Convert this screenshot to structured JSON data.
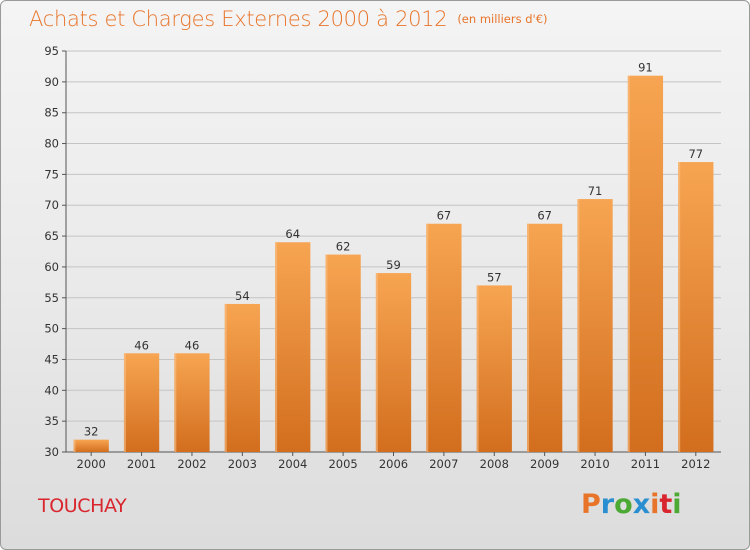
{
  "title": "Achats et Charges Externes 2000 à 2012",
  "unit": "(en milliers d'€)",
  "commune": "TOUCHAY",
  "logo": {
    "text": "Proxiti",
    "letters": [
      "P",
      "r",
      "o",
      "x",
      "i",
      "t",
      "i"
    ]
  },
  "colors": {
    "title": "#e8742a",
    "bar_light": "#f7a552",
    "bar_dark": "#d26e1e",
    "commune": "#d9262e"
  },
  "chart_data": {
    "type": "bar",
    "categories": [
      "2000",
      "2001",
      "2002",
      "2003",
      "2004",
      "2005",
      "2006",
      "2007",
      "2008",
      "2009",
      "2010",
      "2011",
      "2012"
    ],
    "values": [
      32,
      46,
      46,
      54,
      64,
      62,
      59,
      67,
      57,
      67,
      71,
      91,
      77
    ],
    "ylim": [
      30,
      95
    ],
    "yticks": [
      30,
      35,
      40,
      45,
      50,
      55,
      60,
      65,
      70,
      75,
      80,
      85,
      90,
      95
    ],
    "grid": true,
    "show_value_labels": true
  }
}
